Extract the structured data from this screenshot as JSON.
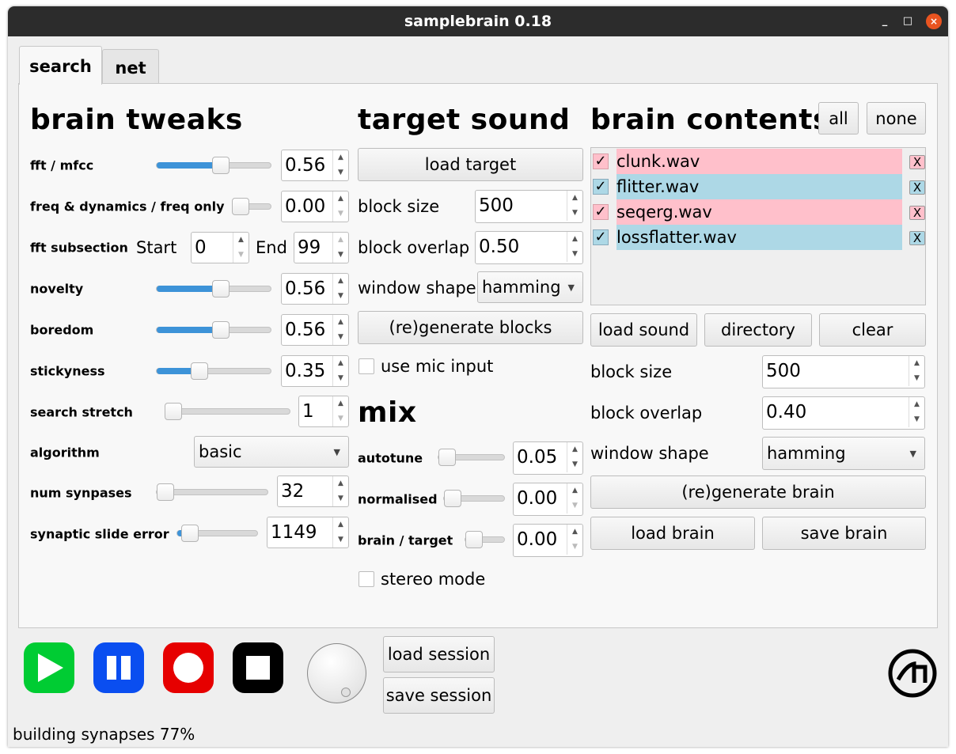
{
  "window": {
    "title": "samplebrain 0.18",
    "minimize": "_",
    "maximize": "□",
    "close": "×"
  },
  "tabs": [
    {
      "label": "search",
      "active": true
    },
    {
      "label": "net",
      "active": false
    }
  ],
  "brain_tweaks": {
    "title": "brain tweaks",
    "fft_mfcc": {
      "label": "fft / mfcc",
      "value": "0.56",
      "slider": 0.56
    },
    "freq_dynamics": {
      "label": "freq & dynamics / freq only",
      "value": "0.00",
      "slider": 0.0
    },
    "fft_subsection": {
      "label": "fft subsection",
      "start_label": "Start",
      "start": "0",
      "end_label": "End",
      "end": "99"
    },
    "novelty": {
      "label": "novelty",
      "value": "0.56",
      "slider": 0.56
    },
    "boredom": {
      "label": "boredom",
      "value": "0.56",
      "slider": 0.56
    },
    "stickyness": {
      "label": "stickyness",
      "value": "0.35",
      "slider": 0.35
    },
    "search_stretch": {
      "label": "search stretch",
      "value": "1"
    },
    "algorithm": {
      "label": "algorithm",
      "value": "basic"
    },
    "num_synapses": {
      "label": "num synpases",
      "value": "32"
    },
    "synaptic_slide_error": {
      "label": "synaptic slide error",
      "value": "1149"
    }
  },
  "target_sound": {
    "title": "target sound",
    "load_target": "load target",
    "block_size": {
      "label": "block size",
      "value": "500"
    },
    "block_overlap": {
      "label": "block overlap",
      "value": "0.50"
    },
    "window_shape": {
      "label": "window shape",
      "value": "hamming"
    },
    "regenerate": "(re)generate blocks",
    "use_mic": {
      "label": "use mic input",
      "checked": false
    }
  },
  "mix": {
    "title": "mix",
    "autotune": {
      "label": "autotune",
      "value": "0.05"
    },
    "normalised": {
      "label": "normalised",
      "value": "0.00"
    },
    "brain_target": {
      "label": "brain / target",
      "value": "0.00"
    },
    "stereo": {
      "label": "stereo mode",
      "checked": false
    }
  },
  "brain_contents": {
    "title": "brain contents",
    "all": "all",
    "none": "none",
    "files": [
      {
        "name": "clunk.wav",
        "checked": true,
        "color": "#ffc0cb",
        "remove": "X"
      },
      {
        "name": "flitter.wav",
        "checked": true,
        "color": "#add8e6",
        "remove": "X"
      },
      {
        "name": "seqerg.wav",
        "checked": true,
        "color": "#ffc0cb",
        "remove": "X"
      },
      {
        "name": "lossflatter.wav",
        "checked": true,
        "color": "#add8e6",
        "remove": "X"
      }
    ],
    "check_mark": "✓",
    "load_sound": "load sound",
    "directory": "directory",
    "clear": "clear",
    "block_size": {
      "label": "block size",
      "value": "500"
    },
    "block_overlap": {
      "label": "block overlap",
      "value": "0.40"
    },
    "window_shape": {
      "label": "window shape",
      "value": "hamming"
    },
    "regenerate": "(re)generate brain",
    "load_brain": "load brain",
    "save_brain": "save brain"
  },
  "transport": {
    "play_color": "#00cc33",
    "pause_color": "#0a4ef0",
    "record_color": "#e60000",
    "stop_color": "#000000"
  },
  "session": {
    "load": "load session",
    "save": "save session"
  },
  "status": "building synapses 77%"
}
